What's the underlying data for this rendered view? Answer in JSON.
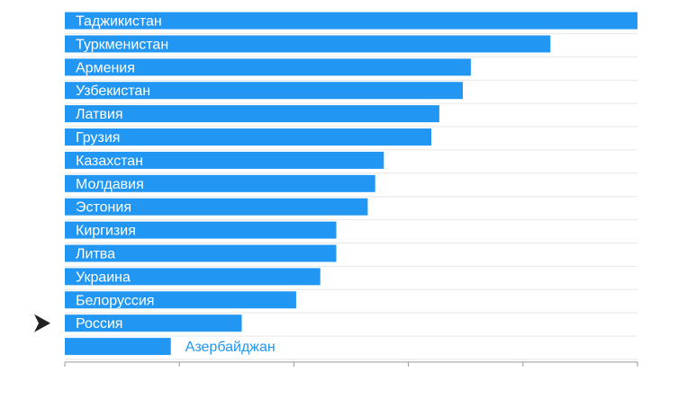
{
  "chart_data": {
    "type": "bar",
    "orientation": "horizontal",
    "categories": [
      "Таджикистан",
      "Туркменистан",
      "Армения",
      "Узбекистан",
      "Латвия",
      "Грузия",
      "Казахстан",
      "Молдавия",
      "Эстония",
      "Киргизия",
      "Литва",
      "Украина",
      "Белоруссия",
      "Россия",
      "Азербайджан"
    ],
    "values": [
      100,
      84.8,
      70.9,
      69.5,
      65.4,
      64.0,
      55.7,
      54.2,
      52.9,
      47.4,
      47.4,
      44.6,
      40.4,
      30.9,
      18.5
    ],
    "xlim": [
      0,
      100
    ],
    "grid": true,
    "highlight": "Россия",
    "bar_color": "#2196f3",
    "label_color_inside": "#ffffff",
    "label_color_outside": "#2196f3",
    "axis_color": "#999999",
    "marker_color": "#222222"
  }
}
